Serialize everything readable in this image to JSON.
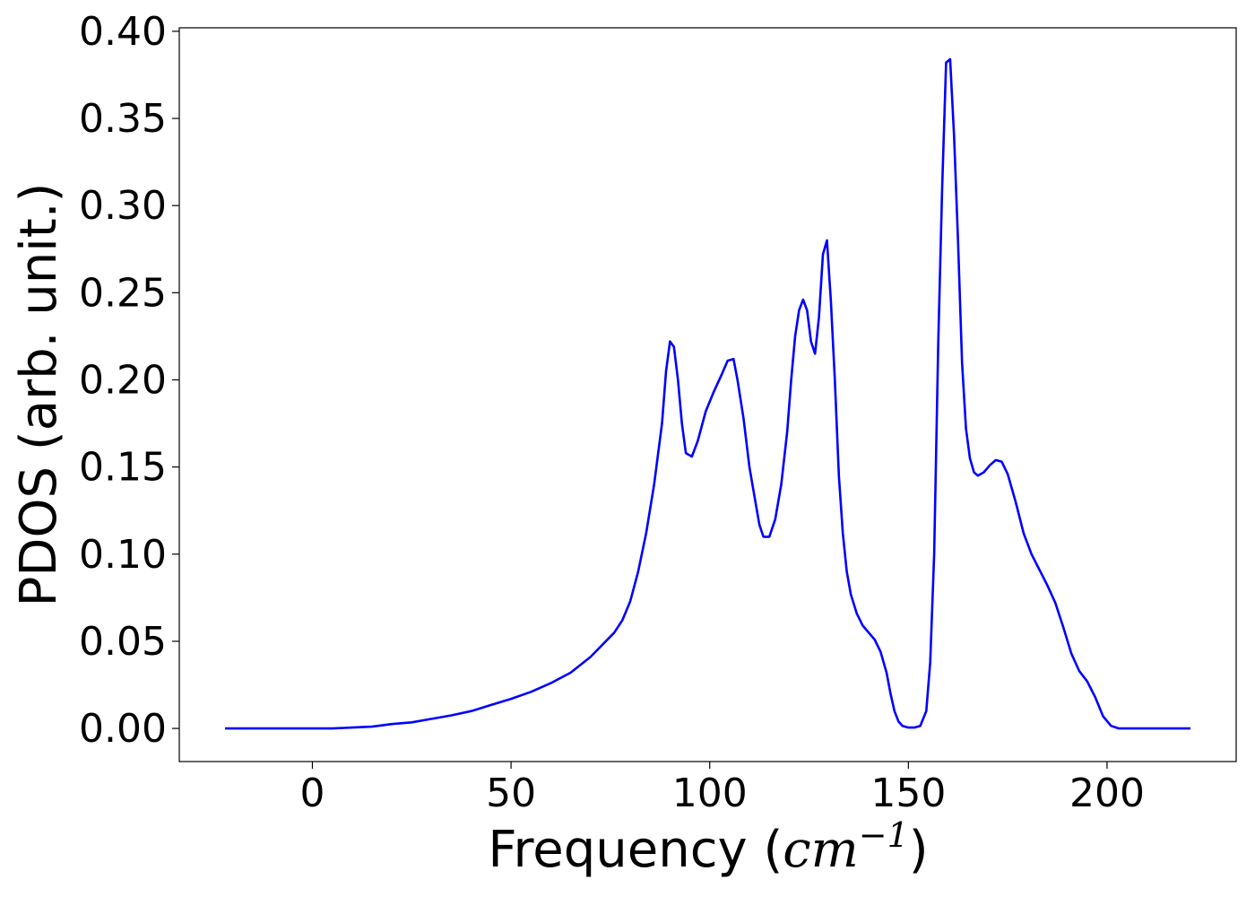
{
  "chart_data": {
    "type": "line",
    "xlabel": "Frequency (",
    "xlabel_math": "cm",
    "xlabel_sup": "−1",
    "xlabel_close": ")",
    "ylabel": "PDOS (arb. unit.)",
    "xlim": [
      -33.5,
      232.5
    ],
    "ylim": [
      -0.019,
      0.402
    ],
    "xticks": [
      0,
      50,
      100,
      150,
      200
    ],
    "yticks": [
      0.0,
      0.05,
      0.1,
      0.15,
      0.2,
      0.25,
      0.3,
      0.35,
      0.4
    ],
    "xtick_labels": [
      "0",
      "50",
      "100",
      "150",
      "200"
    ],
    "ytick_labels": [
      "0.00",
      "0.05",
      "0.10",
      "0.15",
      "0.20",
      "0.25",
      "0.30",
      "0.35",
      "0.40"
    ],
    "grid": false,
    "series": [
      {
        "color": "#0000ff",
        "points": [
          [
            -22,
            0.0
          ],
          [
            0,
            0.0
          ],
          [
            5,
            0.0
          ],
          [
            10,
            0.0005
          ],
          [
            15,
            0.001
          ],
          [
            20,
            0.0025
          ],
          [
            25,
            0.0035
          ],
          [
            30,
            0.0055
          ],
          [
            35,
            0.0075
          ],
          [
            40,
            0.01
          ],
          [
            45,
            0.0135
          ],
          [
            50,
            0.017
          ],
          [
            55,
            0.021
          ],
          [
            60,
            0.026
          ],
          [
            65,
            0.032
          ],
          [
            70,
            0.041
          ],
          [
            73,
            0.048
          ],
          [
            76,
            0.055
          ],
          [
            78,
            0.062
          ],
          [
            80,
            0.073
          ],
          [
            82,
            0.09
          ],
          [
            84,
            0.112
          ],
          [
            86,
            0.14
          ],
          [
            88,
            0.175
          ],
          [
            89,
            0.205
          ],
          [
            90,
            0.222
          ],
          [
            91,
            0.219
          ],
          [
            92,
            0.2
          ],
          [
            93,
            0.175
          ],
          [
            94,
            0.158
          ],
          [
            95.5,
            0.156
          ],
          [
            97,
            0.165
          ],
          [
            99,
            0.182
          ],
          [
            101,
            0.193
          ],
          [
            103,
            0.203
          ],
          [
            104.5,
            0.211
          ],
          [
            106,
            0.212
          ],
          [
            107,
            0.2
          ],
          [
            108.5,
            0.178
          ],
          [
            110,
            0.15
          ],
          [
            111.5,
            0.13
          ],
          [
            112.5,
            0.117
          ],
          [
            113.5,
            0.11
          ],
          [
            115,
            0.11
          ],
          [
            116.5,
            0.12
          ],
          [
            118,
            0.14
          ],
          [
            119.5,
            0.17
          ],
          [
            120.5,
            0.2
          ],
          [
            121.5,
            0.225
          ],
          [
            122.5,
            0.24
          ],
          [
            123.5,
            0.246
          ],
          [
            124.5,
            0.24
          ],
          [
            125.5,
            0.222
          ],
          [
            126.5,
            0.215
          ],
          [
            127.5,
            0.236
          ],
          [
            128.5,
            0.272
          ],
          [
            129.5,
            0.28
          ],
          [
            130.5,
            0.245
          ],
          [
            131.5,
            0.2
          ],
          [
            132.5,
            0.145
          ],
          [
            133.5,
            0.112
          ],
          [
            134.5,
            0.09
          ],
          [
            135.5,
            0.077
          ],
          [
            137,
            0.066
          ],
          [
            138.5,
            0.059
          ],
          [
            140,
            0.055
          ],
          [
            141.5,
            0.051
          ],
          [
            143,
            0.044
          ],
          [
            144.5,
            0.032
          ],
          [
            145.5,
            0.02
          ],
          [
            146.5,
            0.01
          ],
          [
            147.5,
            0.004
          ],
          [
            148.5,
            0.0015
          ],
          [
            150,
            0.0005
          ],
          [
            151.5,
            0.0005
          ],
          [
            153,
            0.0015
          ],
          [
            154.5,
            0.01
          ],
          [
            155.5,
            0.038
          ],
          [
            156.5,
            0.1
          ],
          [
            157.5,
            0.22
          ],
          [
            158.5,
            0.31
          ],
          [
            159.5,
            0.382
          ],
          [
            160.5,
            0.384
          ],
          [
            161.5,
            0.34
          ],
          [
            162.5,
            0.28
          ],
          [
            163.5,
            0.21
          ],
          [
            164.5,
            0.172
          ],
          [
            165.5,
            0.155
          ],
          [
            166.5,
            0.147
          ],
          [
            167.5,
            0.145
          ],
          [
            169,
            0.147
          ],
          [
            170.5,
            0.151
          ],
          [
            172,
            0.154
          ],
          [
            173.5,
            0.153
          ],
          [
            175,
            0.146
          ],
          [
            177,
            0.13
          ],
          [
            179,
            0.112
          ],
          [
            181,
            0.1
          ],
          [
            183,
            0.091
          ],
          [
            185,
            0.082
          ],
          [
            187,
            0.072
          ],
          [
            189,
            0.058
          ],
          [
            191,
            0.043
          ],
          [
            193,
            0.033
          ],
          [
            195,
            0.027
          ],
          [
            197,
            0.018
          ],
          [
            199,
            0.007
          ],
          [
            201,
            0.0015
          ],
          [
            203,
            0.0
          ],
          [
            210,
            0.0
          ],
          [
            221,
            0.0
          ]
        ]
      }
    ]
  }
}
